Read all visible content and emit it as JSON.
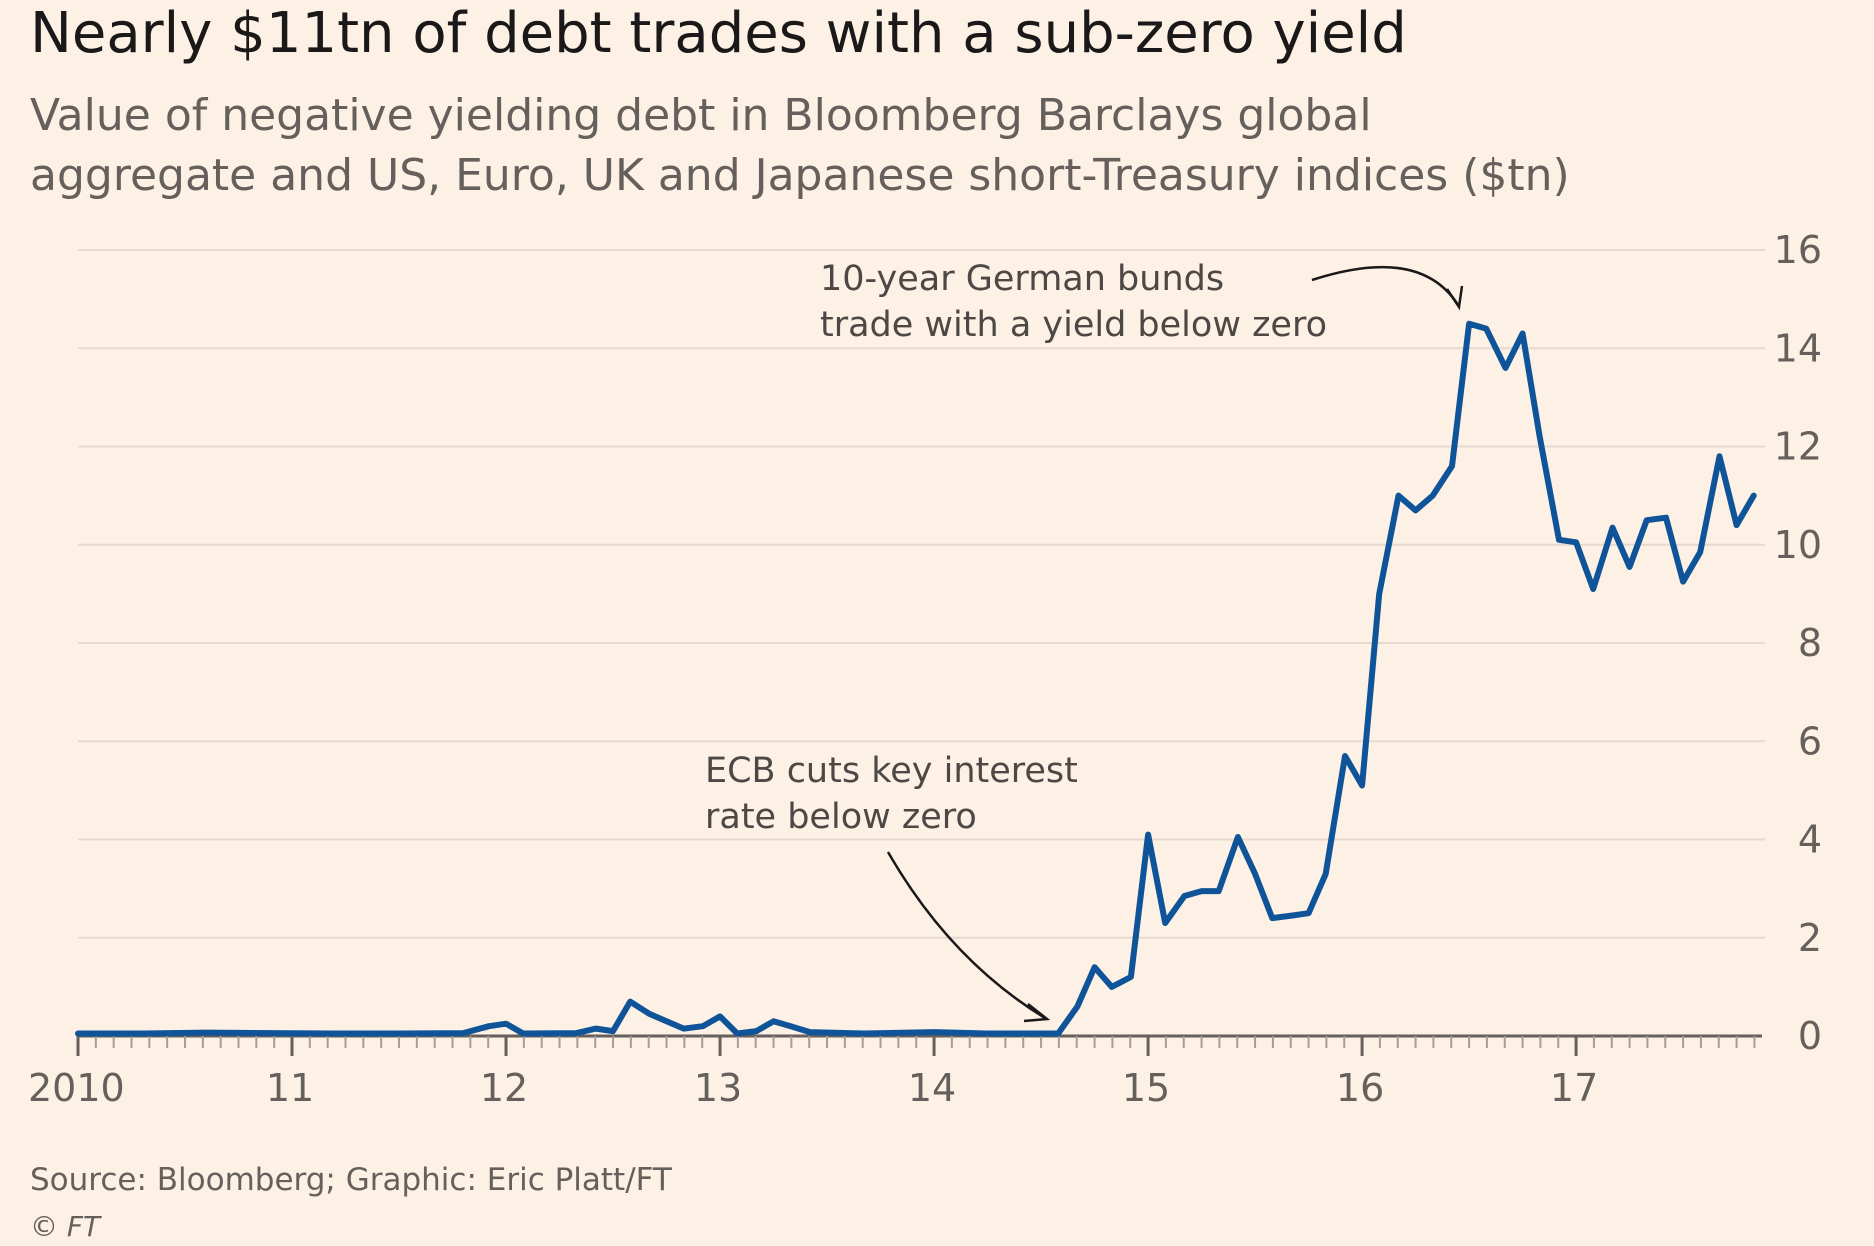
{
  "title": "Nearly $11tn of debt trades with a sub-zero yield",
  "subtitle_line1": "Value of negative yielding debt in Bloomberg Barclays global",
  "subtitle_line2": "aggregate and US, Euro, UK and Japanese short-Treasury indices ($tn)",
  "source": "Source: Bloomberg; Graphic: Eric Platt/FT",
  "copyright": "© FT",
  "colors": {
    "series": "#0f5499",
    "background": "#fdf1e6"
  },
  "chart_data": {
    "type": "line",
    "xlim": [
      2010,
      2017.85
    ],
    "ylim": [
      0,
      16
    ],
    "yticks": [
      0,
      2,
      4,
      6,
      8,
      10,
      12,
      14,
      16
    ],
    "xticks": [
      {
        "value": 2010,
        "label": "2010"
      },
      {
        "value": 2011,
        "label": "11"
      },
      {
        "value": 2012,
        "label": "12"
      },
      {
        "value": 2013,
        "label": "13"
      },
      {
        "value": 2014,
        "label": "14"
      },
      {
        "value": 2015,
        "label": "15"
      },
      {
        "value": 2016,
        "label": "16"
      },
      {
        "value": 2017,
        "label": "17"
      }
    ],
    "grid": true,
    "series": [
      {
        "points": [
          [
            2010.0,
            0.05
          ],
          [
            2010.3,
            0.05
          ],
          [
            2010.6,
            0.07
          ],
          [
            2010.9,
            0.06
          ],
          [
            2011.2,
            0.05
          ],
          [
            2011.5,
            0.05
          ],
          [
            2011.8,
            0.06
          ],
          [
            2011.92,
            0.2
          ],
          [
            2012.0,
            0.25
          ],
          [
            2012.08,
            0.05
          ],
          [
            2012.33,
            0.06
          ],
          [
            2012.42,
            0.15
          ],
          [
            2012.5,
            0.1
          ],
          [
            2012.58,
            0.7
          ],
          [
            2012.67,
            0.45
          ],
          [
            2012.83,
            0.15
          ],
          [
            2012.92,
            0.2
          ],
          [
            2013.0,
            0.4
          ],
          [
            2013.08,
            0.05
          ],
          [
            2013.17,
            0.1
          ],
          [
            2013.25,
            0.3
          ],
          [
            2013.33,
            0.2
          ],
          [
            2013.42,
            0.08
          ],
          [
            2013.67,
            0.05
          ],
          [
            2014.0,
            0.08
          ],
          [
            2014.25,
            0.05
          ],
          [
            2014.5,
            0.05
          ],
          [
            2014.58,
            0.05
          ],
          [
            2014.67,
            0.6
          ],
          [
            2014.75,
            1.4
          ],
          [
            2014.83,
            1.0
          ],
          [
            2014.92,
            1.2
          ],
          [
            2015.0,
            4.1
          ],
          [
            2015.08,
            2.3
          ],
          [
            2015.17,
            2.85
          ],
          [
            2015.25,
            2.95
          ],
          [
            2015.33,
            2.95
          ],
          [
            2015.42,
            4.05
          ],
          [
            2015.5,
            3.3
          ],
          [
            2015.58,
            2.4
          ],
          [
            2015.67,
            2.45
          ],
          [
            2015.75,
            2.5
          ],
          [
            2015.83,
            3.3
          ],
          [
            2015.92,
            5.7
          ],
          [
            2016.0,
            5.1
          ],
          [
            2016.08,
            9.0
          ],
          [
            2016.17,
            11.0
          ],
          [
            2016.25,
            10.7
          ],
          [
            2016.33,
            11.0
          ],
          [
            2016.42,
            11.6
          ],
          [
            2016.5,
            14.5
          ],
          [
            2016.58,
            14.4
          ],
          [
            2016.67,
            13.6
          ],
          [
            2016.75,
            14.3
          ],
          [
            2016.83,
            12.2
          ],
          [
            2016.92,
            10.1
          ],
          [
            2017.0,
            10.05
          ],
          [
            2017.08,
            9.1
          ],
          [
            2017.17,
            10.35
          ],
          [
            2017.25,
            9.55
          ],
          [
            2017.33,
            10.5
          ],
          [
            2017.42,
            10.55
          ],
          [
            2017.5,
            9.25
          ],
          [
            2017.58,
            9.85
          ],
          [
            2017.67,
            11.8
          ],
          [
            2017.75,
            10.4
          ],
          [
            2017.83,
            11.0
          ]
        ]
      }
    ],
    "annotations": [
      {
        "lines": [
          "ECB cuts key interest",
          "rate below zero"
        ]
      },
      {
        "lines": [
          "10-year German bunds",
          "trade with a yield below zero"
        ]
      }
    ]
  }
}
